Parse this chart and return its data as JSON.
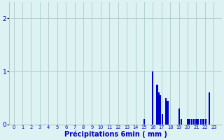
{
  "bars": [
    [
      15,
      0.1
    ],
    [
      16,
      1.0
    ],
    [
      16.5,
      0.75
    ],
    [
      16.7,
      0.6
    ],
    [
      16.85,
      0.55
    ],
    [
      17.1,
      0.2
    ],
    [
      17.5,
      0.5
    ],
    [
      17.7,
      0.45
    ],
    [
      19.0,
      0.3
    ],
    [
      19.3,
      0.1
    ],
    [
      20.0,
      0.1
    ],
    [
      20.2,
      0.1
    ],
    [
      20.5,
      0.1
    ],
    [
      20.7,
      0.1
    ],
    [
      21.0,
      0.1
    ],
    [
      21.2,
      0.1
    ],
    [
      21.5,
      0.1
    ],
    [
      21.8,
      0.1
    ],
    [
      22.1,
      0.1
    ],
    [
      22.5,
      0.6
    ]
  ],
  "bar_width": 0.18,
  "bar_color": "#0000cc",
  "bg_color": "#ddf2f2",
  "grid_color": "#aacccc",
  "text_color": "#0000bb",
  "xlabel": "Précipitations 6min ( mm )",
  "yticks": [
    0,
    1,
    2
  ],
  "ylim": [
    0,
    2.3
  ],
  "xlim": [
    -0.5,
    23.9
  ],
  "xtick_labels": [
    "0",
    "1",
    "2",
    "3",
    "4",
    "5",
    "6",
    "7",
    "8",
    "9",
    "10",
    "11",
    "12",
    "13",
    "14",
    "15",
    "16",
    "17",
    "18",
    "19",
    "20",
    "21",
    "22",
    "23"
  ],
  "xtick_pos": [
    0,
    1,
    2,
    3,
    4,
    5,
    6,
    7,
    8,
    9,
    10,
    11,
    12,
    13,
    14,
    15,
    16,
    17,
    18,
    19,
    20,
    21,
    22,
    23
  ]
}
